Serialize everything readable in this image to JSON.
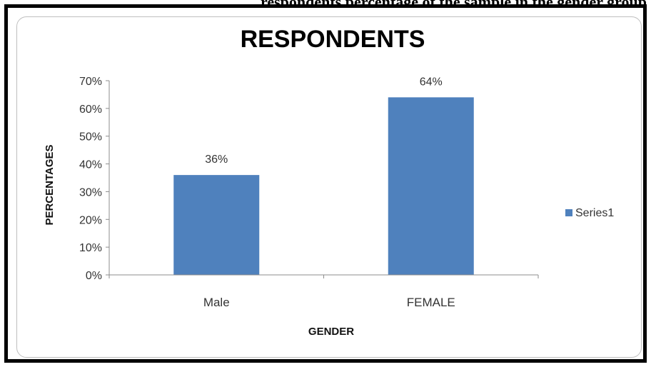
{
  "caption_fragment": "respondents percentage of the sample in the gender group",
  "colors": {
    "bar": "#4f81bd",
    "axis": "#8c8c8c",
    "frame": "#000000"
  },
  "chart_data": {
    "type": "bar",
    "title": "RESPONDENTS",
    "xlabel": "GENDER",
    "ylabel": "PERCENTAGES",
    "categories": [
      "Male",
      "FEMALE"
    ],
    "series": [
      {
        "name": "Series1",
        "values": [
          36,
          64
        ]
      }
    ],
    "data_labels": [
      "36%",
      "64%"
    ],
    "y_ticks": [
      "0%",
      "10%",
      "20%",
      "30%",
      "40%",
      "50%",
      "60%",
      "70%"
    ],
    "ylim": [
      0,
      70
    ],
    "grid": false,
    "legend_position": "right"
  }
}
